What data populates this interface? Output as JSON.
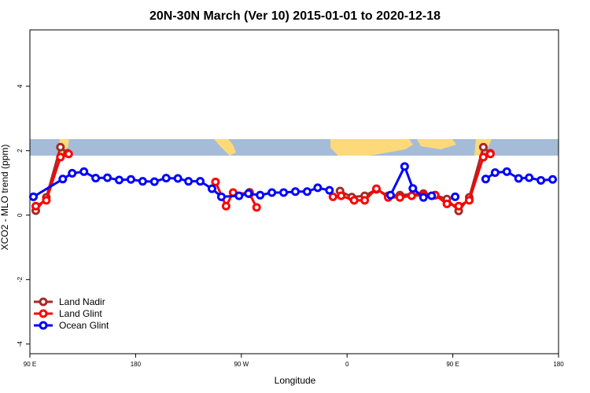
{
  "chart_data": {
    "type": "line",
    "title": "20N-30N March (Ver 10)   2015-01-01 to 2020-12-18",
    "x_label": "Longitude",
    "y_label": "XCO2 - MLO trend (ppm)",
    "xlim": [
      90,
      540
    ],
    "xticks": [
      {
        "value": 90,
        "label": "90 E"
      },
      180,
      {
        "value": 270,
        "label": "90 W"
      },
      {
        "value": 360,
        "label": "0"
      },
      {
        "value": 450,
        "label": "90 E"
      },
      {
        "value": 540,
        "label": "180"
      }
    ],
    "ylim": [
      -4.3,
      5.75
    ],
    "yticks": [
      -4,
      -2,
      0,
      2,
      4
    ],
    "legend": "bottomleft",
    "series": [
      {
        "name": "Land Nadir",
        "color": "#a52a2a",
        "x": [
          95,
          104,
          116,
          122,
          null,
          277,
          null,
          354,
          364,
          375,
          385,
          395,
          405,
          425,
          435,
          445,
          455,
          464,
          476,
          482
        ],
        "values": [
          0.14,
          0.55,
          2.11,
          1.92,
          null,
          0.71,
          null,
          0.75,
          0.56,
          0.6,
          0.8,
          0.6,
          0.62,
          0.67,
          0.62,
          0.5,
          0.13,
          0.55,
          2.11,
          1.92
        ]
      },
      {
        "name": "Land Glint",
        "color": "#ff0000",
        "x": [
          95,
          104,
          116,
          123,
          null,
          248,
          257,
          263,
          277,
          283,
          null,
          348,
          355,
          366,
          375,
          385,
          395,
          405,
          415,
          425,
          435,
          445,
          455,
          464,
          476,
          482
        ],
        "values": [
          0.28,
          0.46,
          1.8,
          1.9,
          null,
          1.03,
          0.28,
          0.7,
          0.66,
          0.24,
          null,
          0.57,
          0.6,
          0.46,
          0.46,
          0.82,
          0.55,
          0.55,
          0.6,
          0.62,
          0.62,
          0.35,
          0.28,
          0.46,
          1.8,
          1.9
        ]
      },
      {
        "name": "Ocean Glint",
        "color": "#0000ff",
        "x": [
          93,
          118,
          126,
          136,
          146,
          156,
          166,
          176,
          186,
          196,
          206,
          216,
          225,
          235,
          245,
          253,
          268,
          276,
          286,
          296,
          306,
          316,
          326,
          335,
          345,
          null,
          397,
          409,
          416,
          425,
          432,
          null,
          452,
          null,
          478,
          486,
          496,
          506,
          515,
          525,
          535
        ],
        "values": [
          0.57,
          1.12,
          1.3,
          1.35,
          1.15,
          1.16,
          1.09,
          1.11,
          1.05,
          1.04,
          1.15,
          1.14,
          1.05,
          1.05,
          0.82,
          0.57,
          0.6,
          0.67,
          0.62,
          0.7,
          0.7,
          0.73,
          0.73,
          0.85,
          0.77,
          null,
          0.62,
          1.51,
          0.83,
          0.55,
          0.6,
          null,
          0.57,
          null,
          1.12,
          1.32,
          1.35,
          1.14,
          1.16,
          1.08,
          1.11
        ]
      }
    ]
  }
}
